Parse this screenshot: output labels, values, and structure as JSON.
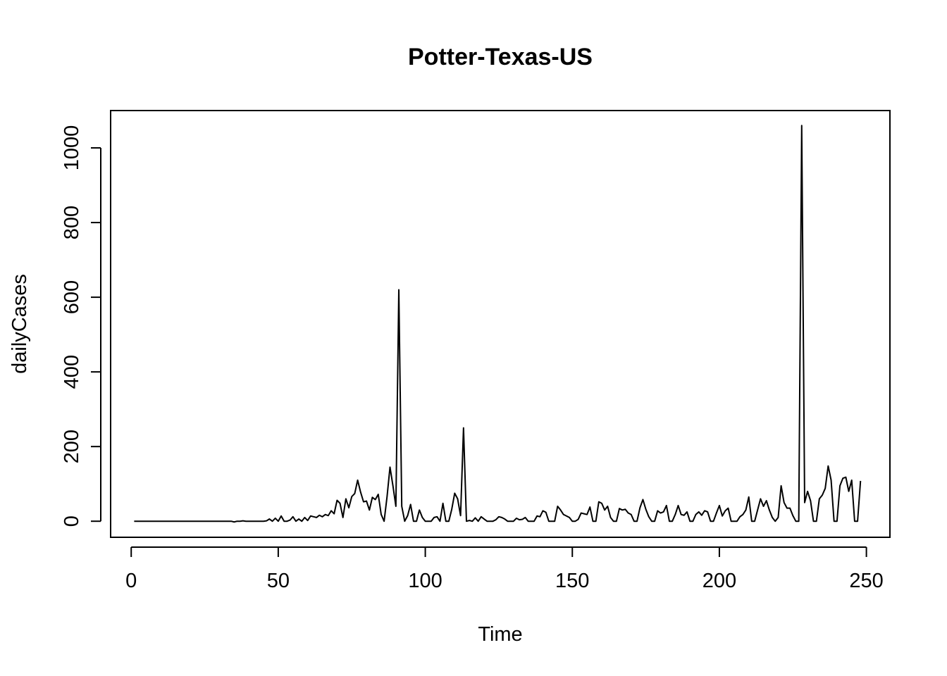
{
  "chart_data": {
    "type": "line",
    "title": "Potter-Texas-US",
    "xlabel": "Time",
    "ylabel": "dailyCases",
    "xlim": [
      -7,
      258
    ],
    "ylim": [
      -43,
      1100
    ],
    "x_ticks": [
      0,
      50,
      100,
      150,
      200,
      250
    ],
    "x_tick_labels": [
      "0",
      "50",
      "100",
      "150",
      "200",
      "250"
    ],
    "y_ticks": [
      0,
      200,
      400,
      600,
      800,
      1000
    ],
    "y_tick_labels": [
      "0",
      "200",
      "400",
      "600",
      "800",
      "1000"
    ],
    "grid": false,
    "color": "#000000",
    "series": [
      {
        "x_start": 1,
        "values": [
          0,
          0,
          0,
          0,
          0,
          0,
          0,
          0,
          0,
          0,
          0,
          0,
          0,
          0,
          0,
          0,
          0,
          0,
          0,
          0,
          0,
          0,
          0,
          0,
          0,
          0,
          0,
          0,
          0,
          0,
          0,
          0,
          0,
          0,
          -2,
          0,
          0,
          1,
          0,
          0,
          0,
          0,
          0,
          0,
          0,
          1,
          6,
          0,
          8,
          0,
          14,
          0,
          0,
          3,
          12,
          0,
          6,
          0,
          10,
          2,
          14,
          12,
          10,
          16,
          12,
          18,
          15,
          28,
          20,
          56,
          48,
          10,
          60,
          36,
          66,
          74,
          110,
          78,
          52,
          54,
          30,
          64,
          58,
          72,
          18,
          0,
          66,
          145,
          95,
          40,
          620,
          40,
          0,
          15,
          45,
          0,
          0,
          30,
          10,
          0,
          0,
          0,
          10,
          12,
          0,
          48,
          0,
          0,
          32,
          75,
          60,
          15,
          250,
          0,
          2,
          0,
          9,
          0,
          12,
          6,
          0,
          0,
          0,
          4,
          12,
          10,
          6,
          0,
          0,
          0,
          8,
          4,
          5,
          10,
          0,
          0,
          0,
          14,
          12,
          28,
          24,
          0,
          0,
          0,
          40,
          30,
          18,
          14,
          10,
          0,
          0,
          5,
          22,
          20,
          18,
          38,
          0,
          0,
          52,
          48,
          30,
          40,
          10,
          0,
          0,
          34,
          30,
          32,
          22,
          18,
          0,
          0,
          36,
          58,
          32,
          12,
          0,
          0,
          28,
          22,
          25,
          42,
          0,
          0,
          18,
          42,
          18,
          16,
          25,
          0,
          0,
          18,
          25,
          16,
          28,
          25,
          0,
          0,
          22,
          42,
          14,
          28,
          35,
          0,
          0,
          0,
          12,
          18,
          30,
          65,
          0,
          0,
          30,
          60,
          40,
          55,
          30,
          10,
          0,
          10,
          95,
          50,
          35,
          35,
          15,
          0,
          0,
          1060,
          50,
          80,
          55,
          0,
          0,
          60,
          70,
          88,
          148,
          110,
          0,
          0,
          95,
          115,
          118,
          80,
          110,
          0,
          0,
          108
        ]
      }
    ]
  }
}
